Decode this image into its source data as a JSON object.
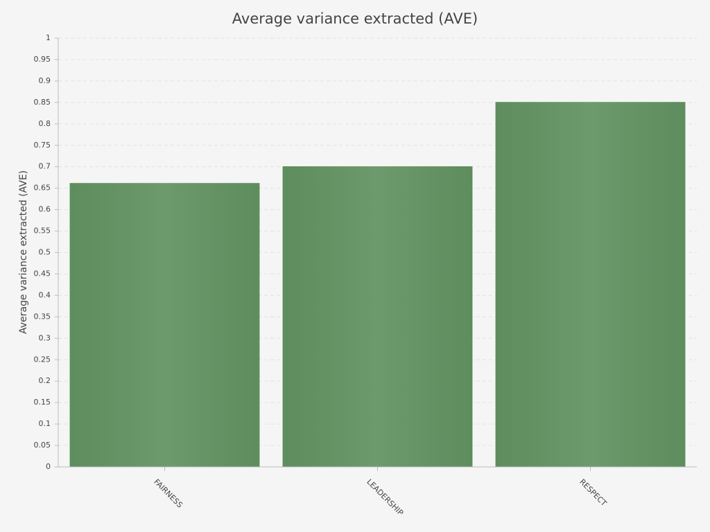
{
  "chart_data": {
    "type": "bar",
    "title": "Average variance extracted (AVE)",
    "y_label": "Average variance extracted (AVE)",
    "categories": [
      "FAIRNESS",
      "LEADERSHIP",
      "RESPECT"
    ],
    "values": [
      0.662,
      0.701,
      0.851
    ],
    "color": "#639463",
    "ylim": [
      0,
      1
    ],
    "yticks": [
      0,
      0.05,
      0.1,
      0.15,
      0.2,
      0.25,
      0.3,
      0.35,
      0.4,
      0.45,
      0.5,
      0.55,
      0.6,
      0.65,
      0.7,
      0.75,
      0.8,
      0.85,
      0.9,
      0.95,
      1
    ],
    "grid": true
  }
}
